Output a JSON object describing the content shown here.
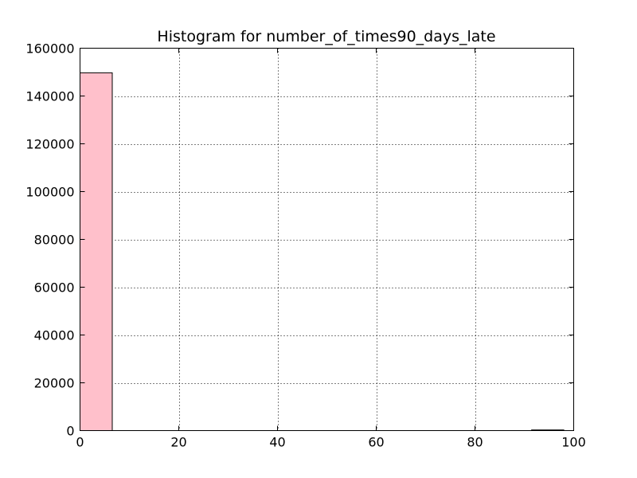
{
  "chart_data": {
    "type": "bar",
    "title": "Histogram for number_of_times90_days_late",
    "xlabel": "",
    "ylabel": "",
    "xlim": [
      0,
      100
    ],
    "ylim": [
      0,
      160000
    ],
    "x_ticks": [
      0,
      20,
      40,
      60,
      80,
      100
    ],
    "y_ticks": [
      0,
      20000,
      40000,
      60000,
      80000,
      100000,
      120000,
      140000,
      160000
    ],
    "grid": true,
    "bar_color": "#ffc0cb",
    "bins": [
      {
        "x_start": 0,
        "x_end": 6.53,
        "count": 149700
      },
      {
        "x_start": 6.53,
        "x_end": 13.07,
        "count": 0
      },
      {
        "x_start": 13.07,
        "x_end": 19.6,
        "count": 0
      },
      {
        "x_start": 19.6,
        "x_end": 26.13,
        "count": 0
      },
      {
        "x_start": 26.13,
        "x_end": 32.67,
        "count": 0
      },
      {
        "x_start": 32.67,
        "x_end": 39.2,
        "count": 0
      },
      {
        "x_start": 39.2,
        "x_end": 45.73,
        "count": 0
      },
      {
        "x_start": 45.73,
        "x_end": 52.27,
        "count": 0
      },
      {
        "x_start": 52.27,
        "x_end": 58.8,
        "count": 0
      },
      {
        "x_start": 58.8,
        "x_end": 65.33,
        "count": 0
      },
      {
        "x_start": 65.33,
        "x_end": 71.87,
        "count": 0
      },
      {
        "x_start": 71.87,
        "x_end": 78.4,
        "count": 0
      },
      {
        "x_start": 78.4,
        "x_end": 84.93,
        "count": 0
      },
      {
        "x_start": 84.93,
        "x_end": 91.47,
        "count": 0
      },
      {
        "x_start": 91.47,
        "x_end": 98.0,
        "count": 270
      }
    ]
  }
}
